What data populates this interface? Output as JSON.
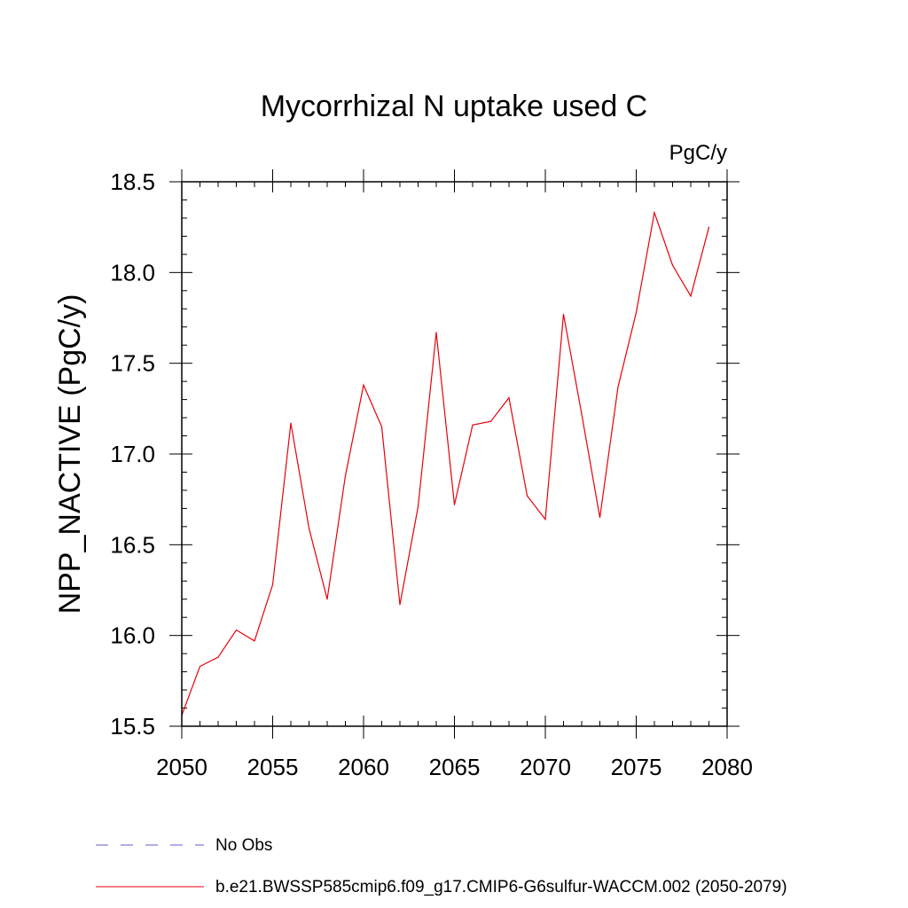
{
  "chart_data": {
    "type": "line",
    "title": "Mycorrhizal N uptake used C",
    "units_label": "PgC/y",
    "xlabel": "",
    "ylabel": "NPP_NACTIVE  (PgC/y)",
    "xlim": [
      2050,
      2080
    ],
    "ylim": [
      15.5,
      18.5
    ],
    "x_ticks": [
      2050,
      2055,
      2060,
      2065,
      2070,
      2075,
      2080
    ],
    "x_tick_labels": [
      "2050",
      "2055",
      "2060",
      "2065",
      "2070",
      "2075",
      "2080"
    ],
    "y_ticks": [
      15.5,
      16.0,
      16.5,
      17.0,
      17.5,
      18.0,
      18.5
    ],
    "y_tick_labels": [
      "15.5",
      "16.0",
      "16.5",
      "17.0",
      "17.5",
      "18.0",
      "18.5"
    ],
    "grid": false,
    "legend_position": "bottom",
    "series": [
      {
        "name": "b.e21.BWSSP585cmip6.f09_g17.CMIP6-G6sulfur-WACCM.002 (2050-2079)",
        "color": "#e8000b",
        "style": "solid",
        "x": [
          2050,
          2051,
          2052,
          2053,
          2054,
          2055,
          2056,
          2057,
          2058,
          2059,
          2060,
          2061,
          2062,
          2063,
          2064,
          2065,
          2066,
          2067,
          2068,
          2069,
          2070,
          2071,
          2072,
          2073,
          2074,
          2075,
          2076,
          2077,
          2078,
          2079
        ],
        "values": [
          15.56,
          15.83,
          15.88,
          16.03,
          15.97,
          16.28,
          17.17,
          16.59,
          16.2,
          16.88,
          17.38,
          17.15,
          16.17,
          16.71,
          17.67,
          16.72,
          17.16,
          17.18,
          17.31,
          16.77,
          16.64,
          17.77,
          17.22,
          16.65,
          17.37,
          17.78,
          18.33,
          18.04,
          17.87,
          18.25
        ]
      }
    ],
    "legend": [
      {
        "label": "No Obs",
        "color": "#6a5acd",
        "style": "dashed"
      },
      {
        "label": "b.e21.BWSSP585cmip6.f09_g17.CMIP6-G6sulfur-WACCM.002 (2050-2079)",
        "color": "#e8000b",
        "style": "solid"
      }
    ]
  }
}
